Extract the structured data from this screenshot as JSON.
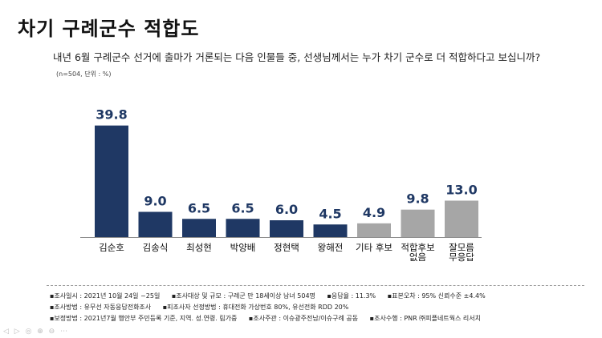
{
  "slide": {
    "title": "차기 구례군수 적합도",
    "question": "내년 6월 구례군수 선거에 출마가 거론되는 다음 인물들 중, 선생님께서는 누가 차기 군수로 더 적합하다고 보십니까?",
    "note": "(n=504, 단위 : %)"
  },
  "chart_data": {
    "type": "bar",
    "categories": [
      "김순호",
      "김송식",
      "최성현",
      "박양배",
      "정현택",
      "왕해전",
      "기타 후보",
      "적합후보 없음",
      "잘모름 무응답"
    ],
    "values": [
      39.8,
      9.0,
      6.5,
      6.5,
      6.0,
      4.5,
      4.9,
      9.8,
      13.0
    ],
    "value_labels": [
      "39.8",
      "9.0",
      "6.5",
      "6.5",
      "6.0",
      "4.5",
      "4.9",
      "9.8",
      "13.0"
    ],
    "category_lines": [
      [
        "김순호"
      ],
      [
        "김송식"
      ],
      [
        "최성현"
      ],
      [
        "박양배"
      ],
      [
        "정현택"
      ],
      [
        "왕해전"
      ],
      [
        "기타 후보"
      ],
      [
        "적합후보",
        "없음"
      ],
      [
        "잘모름",
        "무응답"
      ]
    ],
    "bar_colors": [
      "#1f3864",
      "#1f3864",
      "#1f3864",
      "#1f3864",
      "#1f3864",
      "#1f3864",
      "#a6a6a6",
      "#a6a6a6",
      "#a6a6a6"
    ],
    "ylim": [
      0,
      40
    ],
    "grid": false,
    "legend": "none"
  },
  "footnotes": {
    "row1": [
      "▪조사일시 : 2021년 10월 24일 ~25일",
      "▪조사대상 및 규모 : 구례군 만 18세이상 남녀 504명",
      "▪응답율 : 11.3%",
      "▪표본오차 : 95% 신뢰수준 ±4.4%"
    ],
    "row2": [
      "▪조사방법 : 유무선 자동응답전화조사",
      "▪피조사자 선정방법 : 휴대전화 가상번호 80%, 유선전화 RDD 20%"
    ],
    "row3": [
      "▪보정방법 : 2021년7월 행안부 주민등록 기준, 지역. 성.연령. 림가중",
      "▪조사주관 : 이슈광주전남/이슈구례 공동",
      "▪조사수행 : PNR ㈜피플네트웍스 리서치"
    ]
  },
  "viewer": {
    "nav_icons": "◁ ▷ ◎ ⊕ ⊖ ⋯"
  }
}
